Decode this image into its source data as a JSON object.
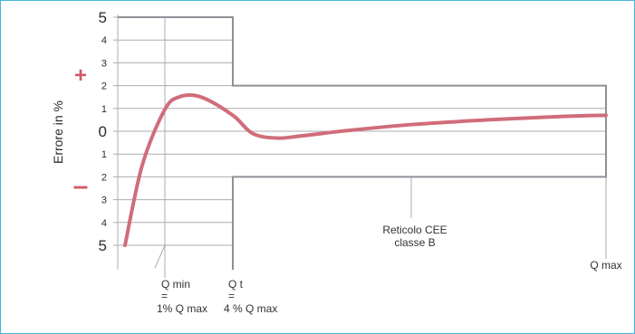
{
  "chart_data": {
    "type": "line",
    "title": "",
    "ylabel": "Errore in %",
    "ylim": [
      -5,
      5
    ],
    "y_tick_labels": [
      "5",
      "4",
      "3",
      "2",
      "1",
      "0",
      "1",
      "2",
      "3",
      "4",
      "5"
    ],
    "plus_sign": "+",
    "minus_sign": "–",
    "grid": true,
    "x_markers": [
      {
        "name": "qmin",
        "lines": [
          "Q min",
          "=",
          "1% Q max"
        ]
      },
      {
        "name": "qt",
        "lines": [
          "Q t",
          "=",
          "4 % Q max"
        ]
      },
      {
        "name": "qmax",
        "lines": [
          "Q max"
        ]
      }
    ],
    "envelope": {
      "lines": [
        "Reticolo CEE",
        "classe B"
      ],
      "low_flow_band": [
        -5,
        5
      ],
      "high_flow_band": [
        -2,
        2
      ]
    },
    "series": [
      {
        "color": "#d06d7a",
        "points": [
          [
            0.0,
            -5.0
          ],
          [
            0.07,
            -1.5
          ],
          [
            0.16,
            0.9
          ],
          [
            0.22,
            1.5
          ],
          [
            0.31,
            1.5
          ],
          [
            0.44,
            0.7
          ],
          [
            0.6,
            -0.1
          ],
          [
            0.8,
            -0.3
          ],
          [
            1.0,
            -0.2
          ],
          [
            1.4,
            0.05
          ],
          [
            1.9,
            0.3
          ],
          [
            2.5,
            0.5
          ],
          [
            3.1,
            0.65
          ],
          [
            3.45,
            0.7
          ]
        ]
      }
    ]
  },
  "colors": {
    "frame_border": "#45b4dc",
    "curve": "#d06d7a",
    "sign": "#d25a6a",
    "envelope": "#8d9197",
    "grid": "#a9adb1"
  }
}
